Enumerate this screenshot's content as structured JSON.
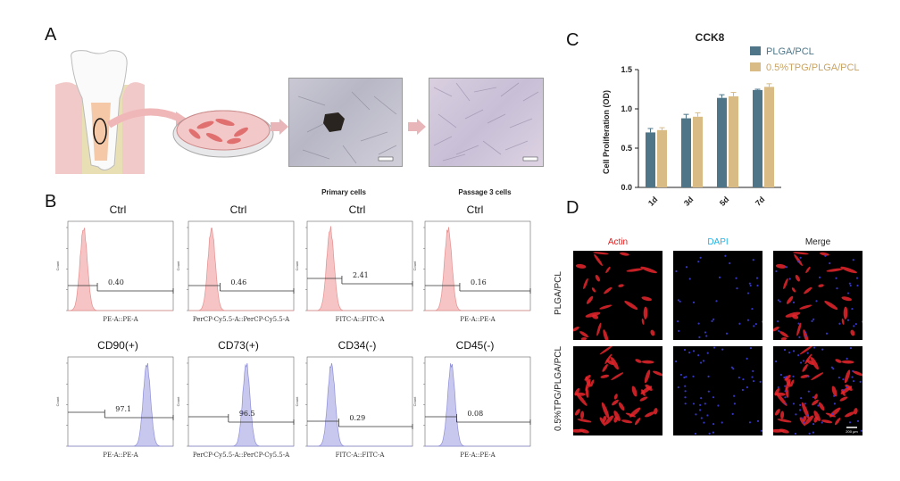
{
  "panels": {
    "A": "A",
    "B": "B",
    "C": "C",
    "D": "D"
  },
  "panel_a": {
    "caption_primary": "Primary cells",
    "caption_passage3": "Passage 3 cells"
  },
  "flow": [
    {
      "title": "Ctrl",
      "xlabel": "PE-A::PE-A",
      "value": "0.40",
      "color": "pink"
    },
    {
      "title": "Ctrl",
      "xlabel": "PerCP-Cy5.5-A::PerCP-Cy5.5-A",
      "value": "0.46",
      "color": "pink"
    },
    {
      "title": "Ctrl",
      "xlabel": "FITC-A::FITC-A",
      "value": "2.41",
      "color": "pink"
    },
    {
      "title": "Ctrl",
      "xlabel": "PE-A::PE-A",
      "value": "0.16",
      "color": "pink"
    },
    {
      "title": "CD90(+)",
      "xlabel": "PE-A::PE-A",
      "value": "97.1",
      "color": "blue"
    },
    {
      "title": "CD73(+)",
      "xlabel": "PerCP-Cy5.5-A::PerCP-Cy5.5-A",
      "value": "96.5",
      "color": "blue"
    },
    {
      "title": "CD34(-)",
      "xlabel": "FITC-A::FITC-A",
      "value": "0.29",
      "color": "blue"
    },
    {
      "title": "CD45(-)",
      "xlabel": "PE-A::PE-A",
      "value": "0.08",
      "color": "blue"
    }
  ],
  "flow_axis": {
    "ylabel": "Count"
  },
  "chart_data": {
    "type": "bar",
    "title": "CCK8",
    "ylabel": "Cell Proliferation (OD)",
    "xlabel": "",
    "categories": [
      "1d",
      "3d",
      "5d",
      "7d"
    ],
    "ylim": [
      0,
      1.5
    ],
    "yticks": [
      "0.0",
      "0.5",
      "1.0",
      "1.5"
    ],
    "series": [
      {
        "name": "PLGA/PCL",
        "values": [
          0.7,
          0.88,
          1.14,
          1.24
        ],
        "errors": [
          0.05,
          0.05,
          0.04,
          0.01
        ],
        "color": "#4f7688"
      },
      {
        "name": "0.5%TPG/PLGA/PCL",
        "values": [
          0.73,
          0.9,
          1.16,
          1.28
        ],
        "errors": [
          0.03,
          0.05,
          0.05,
          0.04
        ],
        "color": "#d9bc85"
      }
    ]
  },
  "panel_d": {
    "col_labels": [
      "Actin",
      "DAPI",
      "Merge"
    ],
    "col_colors": [
      "#e02020",
      "#1fb5e6",
      "#222222"
    ],
    "row_labels": [
      "PLGA/PCL",
      "0.5%TPG/PLGA/PCL"
    ],
    "scale_bar": "200 μm"
  }
}
